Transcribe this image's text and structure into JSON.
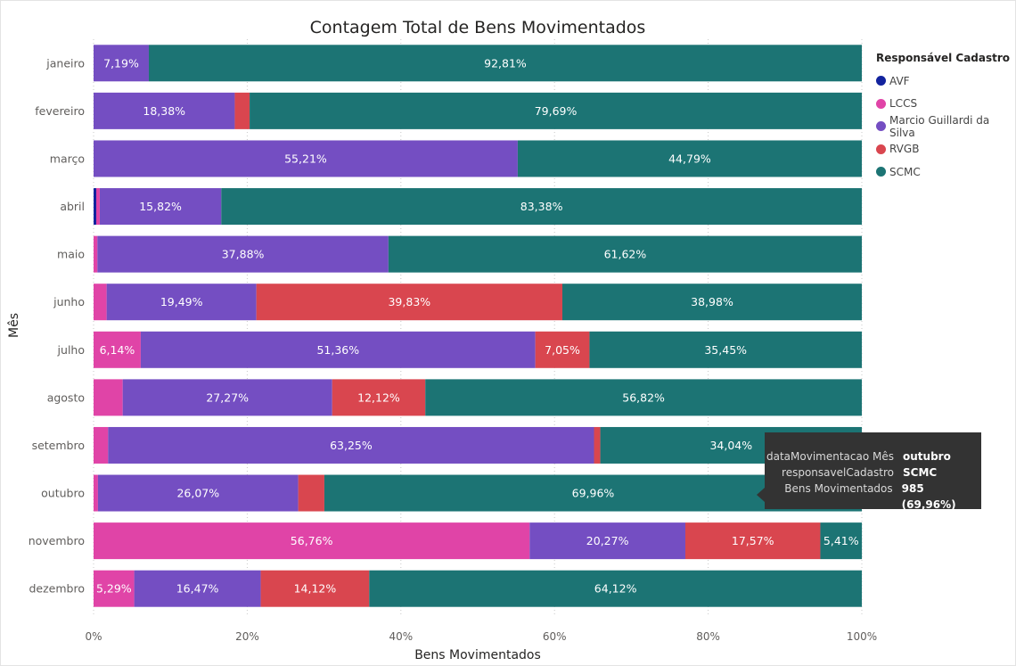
{
  "chart_data": {
    "type": "bar",
    "orientation": "horizontal",
    "stacked": "100%",
    "title": "Contagem Total de Bens Movimentados",
    "xlabel": "Bens Movimentados",
    "ylabel": "Mês",
    "xlim": [
      0,
      100
    ],
    "xticks": [
      "0%",
      "20%",
      "40%",
      "60%",
      "80%",
      "100%"
    ],
    "grid": true,
    "legend_position": "right",
    "legend_title": "Responsável Cadastro",
    "categories": [
      "janeiro",
      "fevereiro",
      "março",
      "abril",
      "maio",
      "junho",
      "julho",
      "agosto",
      "setembro",
      "outubro",
      "novembro",
      "dezembro"
    ],
    "series": [
      {
        "name": "AVF",
        "color": "#12239e",
        "values": [
          0,
          0,
          0,
          0.35,
          0,
          0,
          0,
          0,
          0,
          0,
          0,
          0
        ],
        "labels": [
          "",
          "",
          "",
          "",
          "",
          "",
          "",
          "",
          "",
          "",
          "",
          ""
        ]
      },
      {
        "name": "LCCS",
        "color": "#e044a7",
        "values": [
          0,
          0,
          0,
          0.45,
          0.5,
          1.7,
          6.14,
          3.79,
          1.89,
          0.57,
          56.76,
          5.29
        ],
        "labels": [
          "",
          "",
          "",
          "",
          "",
          "",
          "6,14%",
          "",
          "",
          "",
          "56,76%",
          "5,29%"
        ]
      },
      {
        "name": "Marcio Guillardi da Silva",
        "color": "#744ec2",
        "values": [
          7.19,
          18.38,
          55.21,
          15.82,
          37.88,
          19.49,
          51.36,
          27.27,
          63.25,
          26.07,
          20.27,
          16.47
        ],
        "labels": [
          "7,19%",
          "18,38%",
          "55,21%",
          "15,82%",
          "37,88%",
          "19,49%",
          "51,36%",
          "27,27%",
          "63,25%",
          "26,07%",
          "20,27%",
          "16,47%"
        ]
      },
      {
        "name": "RVGB",
        "color": "#d9464f",
        "values": [
          0,
          1.93,
          0,
          0,
          0,
          39.83,
          7.05,
          12.12,
          0.82,
          3.4,
          17.57,
          14.12
        ],
        "labels": [
          "",
          "",
          "",
          "",
          "",
          "39,83%",
          "7,05%",
          "12,12%",
          "",
          "",
          "17,57%",
          "14,12%"
        ]
      },
      {
        "name": "SCMC",
        "color": "#1c7474",
        "values": [
          92.81,
          79.69,
          44.79,
          83.38,
          61.62,
          38.98,
          35.45,
          56.82,
          34.04,
          69.96,
          5.41,
          64.12
        ],
        "labels": [
          "92,81%",
          "79,69%",
          "44,79%",
          "83,38%",
          "61,62%",
          "38,98%",
          "35,45%",
          "56,82%",
          "34,04%",
          "69,96%",
          "5,41%",
          "64,12%"
        ]
      }
    ]
  },
  "tooltip": {
    "rows": [
      {
        "key": "dataMovimentacao Mês",
        "value": "outubro"
      },
      {
        "key": "responsavelCadastro",
        "value": "SCMC"
      },
      {
        "key": "Bens Movimentados",
        "value": "985 (69,96%)"
      }
    ]
  }
}
